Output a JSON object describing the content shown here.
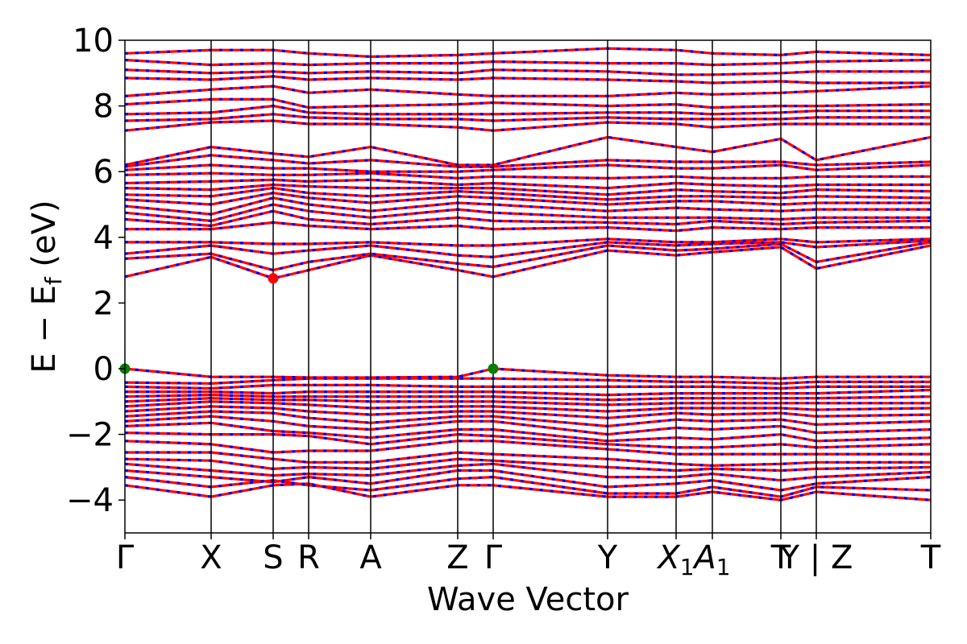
{
  "chart_data": {
    "type": "line",
    "title": "",
    "xlabel": "Wave Vector",
    "ylabel_main": "E − E",
    "ylabel_sub": "f",
    "ylabel_unit": " (eV)",
    "ylim": [
      -5,
      10
    ],
    "yticks": [
      -4,
      -2,
      0,
      2,
      4,
      6,
      8,
      10
    ],
    "ytick_labels": [
      "−4",
      "−2",
      "0",
      "2",
      "4",
      "6",
      "8",
      "10"
    ],
    "grid": false,
    "legend": "none",
    "colors": {
      "spin_up": "#ff0000",
      "spin_down": "#0000ff",
      "vbm": "#008000",
      "cbm": "#ff0000",
      "axis": "#000000"
    },
    "kpoints": [
      {
        "pos": 0.0,
        "label": "Γ"
      },
      {
        "pos": 0.107,
        "label": "X"
      },
      {
        "pos": 0.184,
        "label": "S"
      },
      {
        "pos": 0.228,
        "label": "R"
      },
      {
        "pos": 0.305,
        "label": "A"
      },
      {
        "pos": 0.413,
        "label": "Z"
      },
      {
        "pos": 0.457,
        "label": "Γ"
      },
      {
        "pos": 0.599,
        "label": "Y"
      },
      {
        "pos": 0.684,
        "label": "X",
        "sub": "1"
      },
      {
        "pos": 0.729,
        "label": "A",
        "sub": "1"
      },
      {
        "pos": 0.814,
        "label": "T"
      },
      {
        "pos": 0.858,
        "label": "Y | Z"
      },
      {
        "pos": 1.0,
        "label": "T"
      }
    ],
    "band_gap_markers": [
      {
        "name": "vbm",
        "x": 0.0,
        "y": 0.0
      },
      {
        "name": "vbm",
        "x": 0.457,
        "y": 0.0
      },
      {
        "name": "cbm",
        "x": 0.184,
        "y": 2.75
      }
    ],
    "bands": [
      [
        -3.55,
        -3.9,
        -3.55,
        -3.5,
        -3.9,
        -3.55,
        -3.55,
        -3.9,
        -3.9,
        -3.75,
        -4.0,
        -3.75,
        -4.0
      ],
      [
        -3.3,
        -3.6,
        -3.4,
        -3.55,
        -3.7,
        -3.35,
        -3.3,
        -3.8,
        -3.8,
        -3.6,
        -3.9,
        -3.6,
        -3.7
      ],
      [
        -3.1,
        -3.3,
        -3.45,
        -3.3,
        -3.5,
        -3.1,
        -3.1,
        -3.6,
        -3.5,
        -3.4,
        -3.7,
        -3.5,
        -3.3
      ],
      [
        -2.9,
        -3.1,
        -3.25,
        -3.2,
        -3.25,
        -2.95,
        -2.9,
        -3.3,
        -3.3,
        -3.2,
        -3.4,
        -3.3,
        -3.15
      ],
      [
        -2.75,
        -2.8,
        -3.05,
        -3.0,
        -3.05,
        -2.75,
        -2.8,
        -3.0,
        -3.1,
        -3.05,
        -3.1,
        -3.05,
        -3.0
      ],
      [
        -2.55,
        -2.55,
        -2.75,
        -2.85,
        -2.85,
        -2.55,
        -2.6,
        -2.75,
        -2.9,
        -2.95,
        -2.9,
        -2.85,
        -2.85
      ],
      [
        -2.2,
        -2.3,
        -2.55,
        -2.5,
        -2.5,
        -2.2,
        -2.2,
        -2.45,
        -2.6,
        -2.6,
        -2.6,
        -2.6,
        -2.6
      ],
      [
        -1.95,
        -2.0,
        -2.0,
        -2.05,
        -2.3,
        -2.0,
        -2.05,
        -2.3,
        -2.4,
        -2.4,
        -2.3,
        -2.4,
        -2.3
      ],
      [
        -1.75,
        -1.65,
        -1.9,
        -1.95,
        -2.1,
        -1.85,
        -1.85,
        -2.2,
        -2.1,
        -2.15,
        -2.0,
        -2.2,
        -2.1
      ],
      [
        -1.6,
        -1.45,
        -1.6,
        -1.75,
        -1.85,
        -1.6,
        -1.6,
        -2.0,
        -1.8,
        -1.85,
        -1.75,
        -1.95,
        -1.85
      ],
      [
        -1.45,
        -1.3,
        -1.35,
        -1.5,
        -1.65,
        -1.45,
        -1.45,
        -1.75,
        -1.55,
        -1.6,
        -1.55,
        -1.7,
        -1.6
      ],
      [
        -1.3,
        -1.15,
        -1.2,
        -1.3,
        -1.4,
        -1.3,
        -1.3,
        -1.5,
        -1.35,
        -1.4,
        -1.35,
        -1.45,
        -1.4
      ],
      [
        -1.15,
        -1.0,
        -1.05,
        -1.1,
        -1.2,
        -1.15,
        -1.15,
        -1.3,
        -1.2,
        -1.2,
        -1.2,
        -1.25,
        -1.2
      ],
      [
        -1.0,
        -0.9,
        -0.95,
        -0.95,
        -1.0,
        -1.0,
        -1.0,
        -1.1,
        -1.05,
        -1.05,
        -1.05,
        -1.05,
        -1.05
      ],
      [
        -0.85,
        -0.8,
        -0.85,
        -0.85,
        -0.85,
        -0.85,
        -0.85,
        -0.95,
        -0.9,
        -0.9,
        -0.9,
        -0.9,
        -0.85
      ],
      [
        -0.7,
        -0.7,
        -0.75,
        -0.7,
        -0.7,
        -0.7,
        -0.7,
        -0.8,
        -0.75,
        -0.75,
        -0.75,
        -0.75,
        -0.65
      ],
      [
        -0.55,
        -0.6,
        -0.5,
        -0.5,
        -0.5,
        -0.55,
        -0.55,
        -0.55,
        -0.55,
        -0.55,
        -0.6,
        -0.55,
        -0.55
      ],
      [
        -0.42,
        -0.45,
        -0.35,
        -0.3,
        -0.3,
        -0.3,
        -0.3,
        -0.35,
        -0.4,
        -0.4,
        -0.45,
        -0.4,
        -0.4
      ],
      [
        0.0,
        -0.25,
        -0.25,
        -0.27,
        -0.27,
        -0.25,
        0.0,
        -0.2,
        -0.25,
        -0.25,
        -0.3,
        -0.25,
        -0.25
      ],
      [
        2.8,
        3.4,
        2.75,
        3.0,
        3.45,
        3.0,
        2.8,
        3.6,
        3.45,
        3.55,
        3.7,
        3.05,
        3.75
      ],
      [
        3.35,
        3.5,
        3.0,
        3.25,
        3.5,
        3.2,
        3.1,
        3.75,
        3.6,
        3.65,
        3.8,
        3.25,
        3.85
      ],
      [
        3.5,
        3.75,
        3.5,
        3.6,
        3.75,
        3.45,
        3.4,
        3.85,
        3.75,
        3.8,
        3.85,
        3.7,
        3.9
      ],
      [
        3.85,
        3.85,
        3.8,
        3.8,
        3.85,
        3.75,
        3.75,
        3.95,
        3.85,
        3.85,
        3.95,
        3.85,
        3.95
      ],
      [
        4.25,
        4.25,
        4.45,
        4.35,
        4.25,
        4.35,
        4.25,
        4.3,
        4.2,
        4.3,
        4.25,
        4.3,
        4.3
      ],
      [
        4.55,
        4.35,
        4.8,
        4.55,
        4.4,
        4.6,
        4.5,
        4.45,
        4.4,
        4.5,
        4.4,
        4.45,
        4.5
      ],
      [
        4.75,
        4.5,
        5.0,
        4.8,
        4.6,
        4.85,
        4.75,
        4.6,
        4.6,
        4.6,
        4.55,
        4.6,
        4.6
      ],
      [
        4.95,
        4.7,
        5.2,
        5.0,
        4.8,
        5.05,
        5.0,
        4.8,
        4.9,
        4.85,
        4.8,
        4.85,
        4.85
      ],
      [
        5.15,
        5.0,
        5.35,
        5.2,
        5.05,
        5.25,
        5.2,
        5.0,
        5.1,
        5.1,
        5.0,
        5.05,
        5.05
      ],
      [
        5.3,
        5.25,
        5.5,
        5.35,
        5.25,
        5.4,
        5.35,
        5.15,
        5.25,
        5.25,
        5.2,
        5.25,
        5.2
      ],
      [
        5.5,
        5.45,
        5.6,
        5.55,
        5.5,
        5.5,
        5.5,
        5.3,
        5.45,
        5.4,
        5.35,
        5.45,
        5.4
      ],
      [
        5.65,
        5.7,
        5.75,
        5.7,
        5.75,
        5.6,
        5.65,
        5.5,
        5.65,
        5.6,
        5.55,
        5.6,
        5.6
      ],
      [
        5.9,
        5.95,
        5.9,
        5.9,
        5.95,
        5.8,
        5.85,
        5.8,
        5.85,
        5.8,
        5.8,
        5.85,
        5.85
      ],
      [
        6.05,
        6.2,
        6.1,
        6.1,
        6.0,
        6.0,
        6.05,
        6.2,
        6.1,
        6.1,
        6.2,
        6.05,
        6.2
      ],
      [
        6.15,
        6.5,
        6.35,
        6.25,
        6.35,
        6.15,
        6.15,
        6.35,
        6.3,
        6.3,
        6.3,
        6.2,
        6.3
      ],
      [
        6.2,
        6.75,
        6.55,
        6.45,
        6.75,
        6.2,
        6.2,
        7.05,
        6.75,
        6.6,
        7.0,
        6.35,
        7.05
      ],
      [
        7.25,
        7.5,
        7.55,
        7.45,
        7.45,
        7.35,
        7.25,
        7.5,
        7.45,
        7.35,
        7.45,
        7.45,
        7.45
      ],
      [
        7.55,
        7.6,
        7.75,
        7.65,
        7.6,
        7.6,
        7.55,
        7.65,
        7.6,
        7.6,
        7.6,
        7.65,
        7.65
      ],
      [
        7.75,
        7.8,
        8.0,
        7.8,
        7.75,
        7.75,
        7.75,
        7.8,
        7.8,
        7.75,
        7.8,
        7.85,
        7.85
      ],
      [
        8.05,
        8.2,
        8.2,
        7.95,
        8.0,
        8.05,
        8.1,
        8.0,
        8.05,
        7.95,
        8.0,
        8.0,
        8.05
      ],
      [
        8.3,
        8.5,
        8.6,
        8.4,
        8.5,
        8.35,
        8.3,
        8.3,
        8.4,
        8.35,
        8.4,
        8.45,
        8.6
      ],
      [
        8.85,
        8.8,
        8.9,
        8.8,
        8.85,
        8.8,
        8.85,
        8.8,
        8.75,
        8.7,
        8.75,
        8.7,
        8.7
      ],
      [
        9.1,
        9.0,
        9.05,
        9.0,
        9.05,
        9.0,
        9.1,
        9.05,
        8.95,
        8.95,
        9.0,
        9.05,
        9.05
      ],
      [
        9.4,
        9.25,
        9.3,
        9.25,
        9.3,
        9.3,
        9.35,
        9.3,
        9.3,
        9.25,
        9.3,
        9.35,
        9.4
      ],
      [
        9.6,
        9.7,
        9.7,
        9.6,
        9.5,
        9.55,
        9.6,
        9.75,
        9.7,
        9.6,
        9.55,
        9.65,
        9.55
      ]
    ]
  }
}
